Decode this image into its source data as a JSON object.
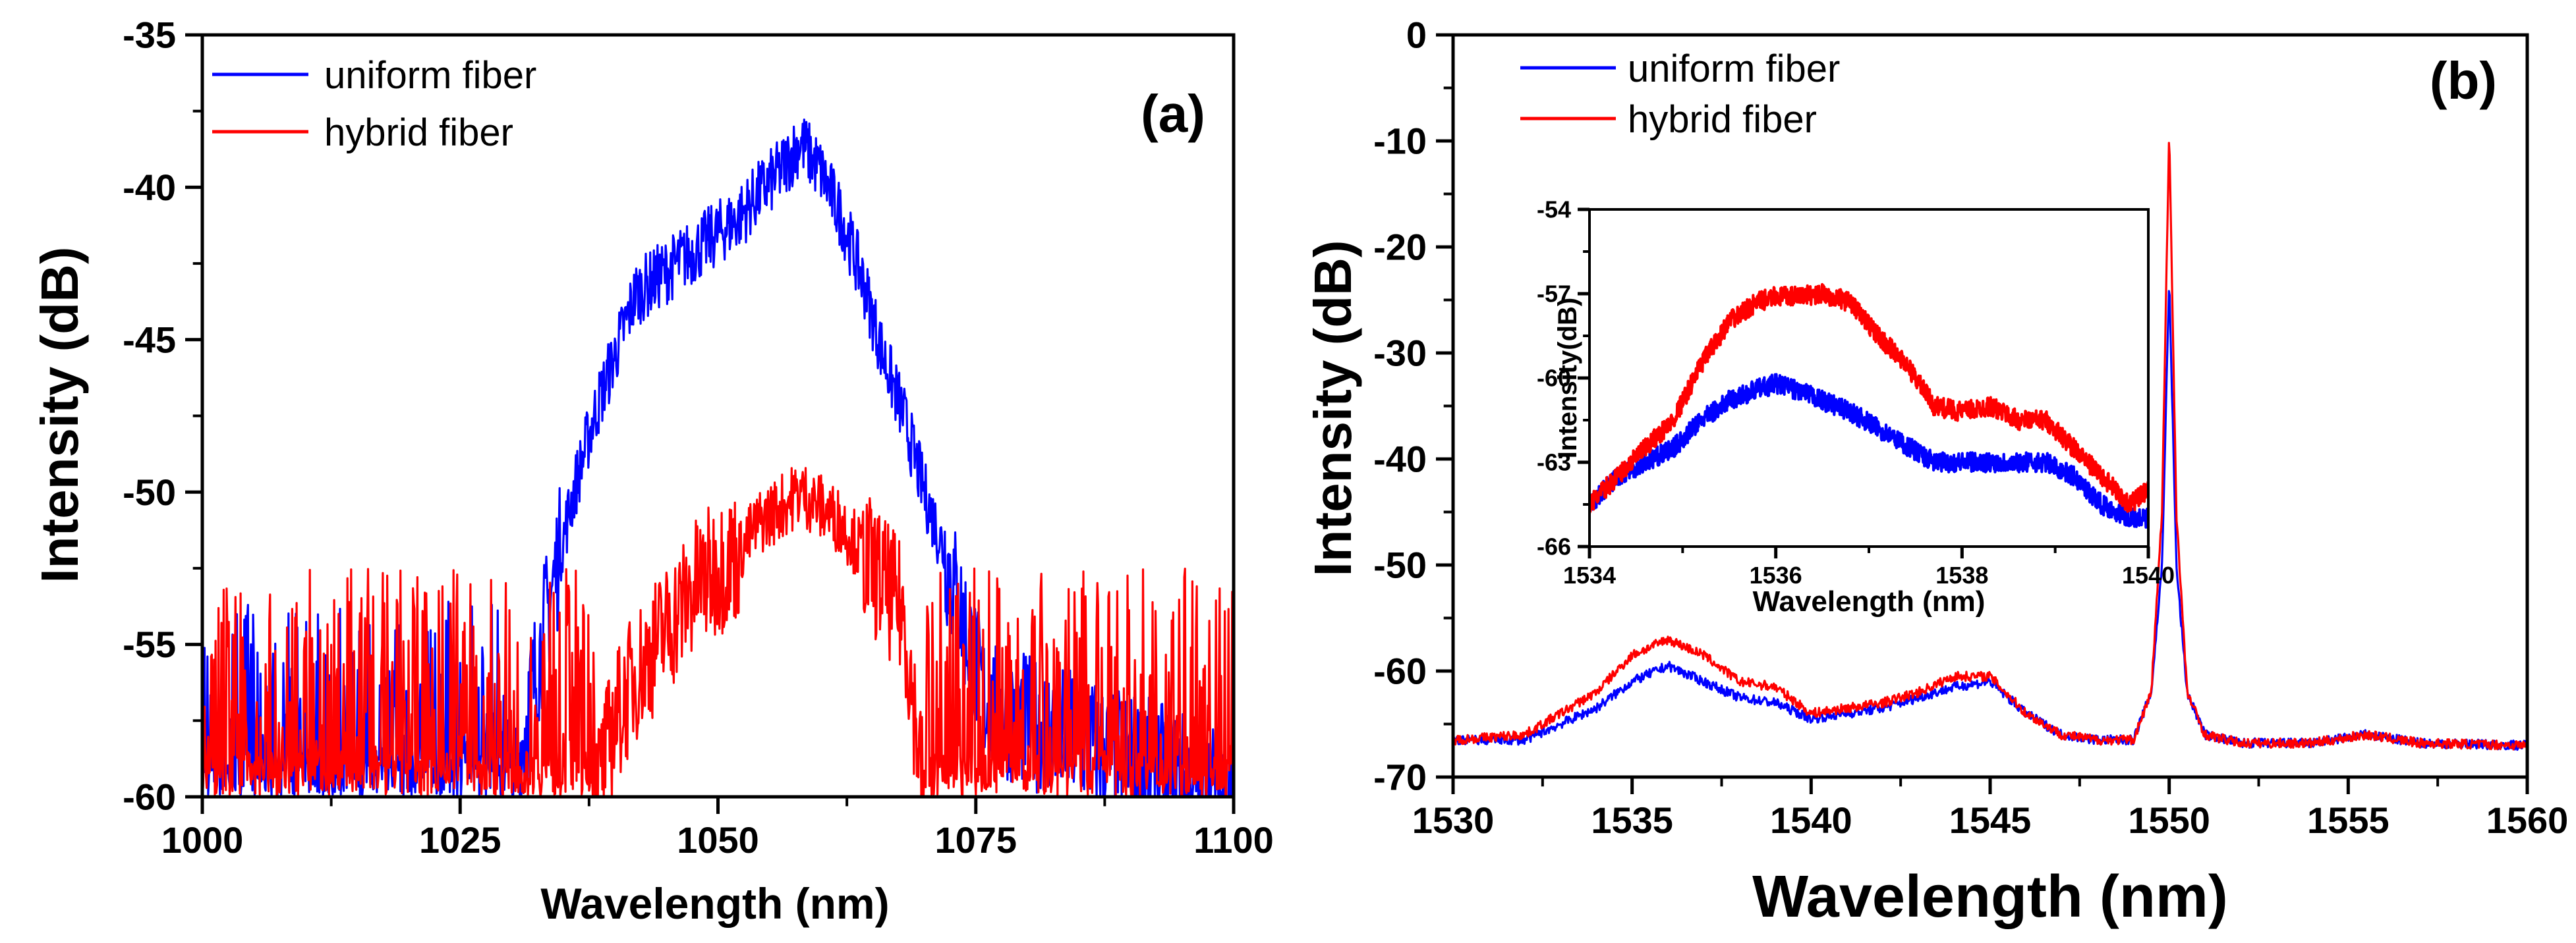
{
  "colors": {
    "uniform": "#0000ff",
    "hybrid": "#ff0000",
    "axis": "#000000"
  },
  "chart_data": [
    {
      "type": "line",
      "panel_label": "(a)",
      "xlabel": "Wavelength (nm)",
      "ylabel": "Intensity (dB)",
      "xlim": [
        1000,
        1100
      ],
      "ylim": [
        -60,
        -35
      ],
      "xticks": [
        "1000",
        "1025",
        "1050",
        "1075",
        "1100"
      ],
      "yticks": [
        "-60",
        "-55",
        "-50",
        "-45",
        "-40",
        "-35"
      ],
      "legend": [
        "uniform fiber",
        "hybrid fiber"
      ],
      "legend_position": "top-left",
      "series": [
        {
          "name": "uniform fiber",
          "color": "#0000ff",
          "x": [
            1000,
            1030,
            1032,
            1034,
            1036,
            1038,
            1040,
            1042,
            1044,
            1046,
            1048,
            1050,
            1052,
            1054,
            1056,
            1058,
            1060,
            1062,
            1064,
            1066,
            1068,
            1070,
            1072,
            1074,
            1076,
            1100
          ],
          "values": [
            -60,
            -60,
            -56.5,
            -53,
            -50,
            -47.5,
            -45.5,
            -43.5,
            -43,
            -42.5,
            -42,
            -41.5,
            -41,
            -40.2,
            -39.5,
            -38.5,
            -39.5,
            -41,
            -43,
            -45.5,
            -47.5,
            -50,
            -52,
            -54.5,
            -57,
            -60
          ],
          "noise": {
            "floor": -60,
            "amplitude": 6.5
          }
        },
        {
          "name": "hybrid fiber",
          "color": "#ff0000",
          "x": [
            1000,
            1038,
            1040,
            1042,
            1044,
            1046,
            1048,
            1050,
            1052,
            1054,
            1056,
            1058,
            1060,
            1062,
            1064,
            1066,
            1068,
            1070,
            1100
          ],
          "values": [
            -60,
            -60,
            -57.5,
            -56,
            -55,
            -54,
            -53,
            -52.5,
            -52,
            -51,
            -50.5,
            -50,
            -50.5,
            -51,
            -52,
            -53,
            -54,
            -60,
            -60
          ],
          "noise": {
            "floor": -60,
            "amplitude": 7.5
          }
        }
      ]
    },
    {
      "type": "line",
      "panel_label": "(b)",
      "xlabel": "Wavelength (nm)",
      "ylabel": "Intensity (dB)",
      "xlim": [
        1530,
        1560
      ],
      "ylim": [
        -70,
        0
      ],
      "xticks": [
        "1530",
        "1535",
        "1540",
        "1545",
        "1550",
        "1555",
        "1560"
      ],
      "yticks": [
        "-70",
        "-60",
        "-50",
        "-40",
        "-30",
        "-20",
        "-10",
        "0"
      ],
      "legend": [
        "uniform fiber",
        "hybrid fiber"
      ],
      "legend_position": "top-left",
      "series": [
        {
          "name": "uniform fiber",
          "color": "#0000ff",
          "x": [
            1530,
            1532,
            1534,
            1535,
            1536,
            1537,
            1538,
            1539,
            1540,
            1541,
            1542,
            1543,
            1544,
            1545,
            1546,
            1547,
            1548,
            1549,
            1549.5,
            1549.8,
            1550,
            1550.2,
            1550.5,
            1551,
            1552,
            1554,
            1555.5,
            1557,
            1560
          ],
          "values": [
            -66.5,
            -66.5,
            -63.5,
            -61,
            -59.5,
            -61,
            -62.5,
            -63,
            -64.5,
            -64,
            -63.5,
            -62.5,
            -61.5,
            -61,
            -64,
            -66,
            -66.5,
            -66.5,
            -62,
            -50,
            -23,
            -50,
            -62,
            -66,
            -66.8,
            -66.8,
            -66,
            -66.8,
            -67
          ]
        },
        {
          "name": "hybrid fiber",
          "color": "#ff0000",
          "x": [
            1530,
            1532,
            1534,
            1535,
            1536,
            1537,
            1538,
            1539,
            1540,
            1541,
            1542,
            1543,
            1544,
            1545,
            1546,
            1547,
            1548,
            1549,
            1549.5,
            1549.8,
            1550,
            1550.2,
            1550.5,
            1551,
            1552,
            1554,
            1555.5,
            1557,
            1560
          ],
          "values": [
            -66.5,
            -66,
            -62,
            -58.5,
            -57,
            -58.5,
            -61,
            -61.5,
            -64,
            -63.5,
            -63,
            -62,
            -60.5,
            -60.5,
            -64,
            -66,
            -66.5,
            -66.5,
            -62,
            -45,
            -9,
            -45,
            -62,
            -66,
            -66.8,
            -66.8,
            -66,
            -66.8,
            -67
          ]
        }
      ],
      "inset": {
        "xlabel": "Wavelength (nm)",
        "ylabel": "Intensity(dB)",
        "xlim": [
          1534,
          1540
        ],
        "ylim": [
          -66,
          -54
        ],
        "xticks": [
          "1534",
          "1536",
          "1538",
          "1540"
        ],
        "yticks": [
          "-66",
          "-63",
          "-60",
          "-57",
          "-54"
        ],
        "series": [
          {
            "name": "uniform fiber",
            "color": "#0000ff",
            "x": [
              1534,
              1534.3,
              1534.6,
              1534.9,
              1535.2,
              1535.5,
              1535.8,
              1536,
              1536.2,
              1536.5,
              1536.8,
              1537.1,
              1537.4,
              1537.7,
              1538,
              1538.3,
              1538.6,
              1538.9,
              1539.2,
              1539.5,
              1539.8,
              1540
            ],
            "values": [
              -64.5,
              -63.5,
              -63,
              -62.5,
              -61.5,
              -60.8,
              -60.4,
              -60.2,
              -60.4,
              -60.8,
              -61.2,
              -61.8,
              -62.4,
              -63,
              -63,
              -63,
              -63,
              -63,
              -63.5,
              -64.5,
              -65,
              -65
            ]
          },
          {
            "name": "hybrid fiber",
            "color": "#ff0000",
            "x": [
              1534,
              1534.3,
              1534.6,
              1534.9,
              1535.2,
              1535.5,
              1535.8,
              1536,
              1536.2,
              1536.5,
              1536.8,
              1537.1,
              1537.4,
              1537.7,
              1538,
              1538.3,
              1538.6,
              1538.9,
              1539.2,
              1539.5,
              1539.8,
              1540
            ],
            "values": [
              -64.5,
              -63.5,
              -62.5,
              -61.5,
              -59.5,
              -58,
              -57.3,
              -57.1,
              -57.1,
              -57,
              -57.3,
              -58.5,
              -59.5,
              -61,
              -61.2,
              -61,
              -61.5,
              -61.5,
              -62.5,
              -63.5,
              -64.5,
              -64
            ]
          }
        ]
      }
    }
  ]
}
